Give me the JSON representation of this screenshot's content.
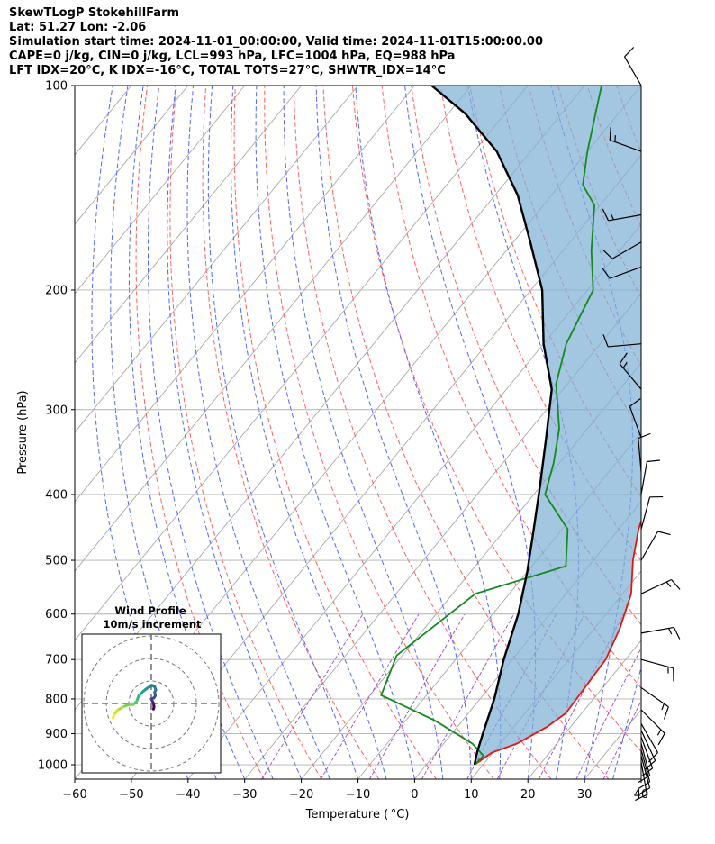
{
  "header": {
    "line1": "SkewTLogP StokehillFarm",
    "line2": "Lat: 51.27   Lon: -2.06",
    "line3": "Simulation start time: 2024-11-01_00:00:00, Valid time: 2024-11-01T15:00:00.00",
    "line4": "CAPE=0 j/kg, CIN=0 j/kg, LCL=993 hPa, LFC=1004 hPa, EQ=988 hPa",
    "line5": "LFT IDX=20°C, K IDX=-16°C, TOTAL TOTS=27°C, SHWTR_IDX=14°C"
  },
  "chart_data": {
    "type": "line",
    "xlabel": "Temperature ( °C)",
    "ylabel": "Pressure (hPa)",
    "xlim": [
      -60,
      40
    ],
    "ylim": [
      1050,
      100
    ],
    "yscale": "log",
    "skew": true,
    "grid": true,
    "xticks": [
      -60,
      -50,
      -40,
      -30,
      -20,
      -10,
      0,
      10,
      20,
      30,
      40
    ],
    "xtick_labels": [
      "−60",
      "−50",
      "−40",
      "−30",
      "−20",
      "−10",
      "0",
      "10",
      "20",
      "30",
      "40"
    ],
    "yticks": [
      1000,
      900,
      800,
      700,
      600,
      500,
      400,
      300,
      200,
      100
    ],
    "ytick_labels": [
      "1000",
      "900",
      "800",
      "700",
      "600",
      "500",
      "400",
      "300",
      "200",
      "100"
    ],
    "series": [
      {
        "color": "#e8140f",
        "x": [
          8.5,
          9.8,
          13,
          15.8,
          17.2,
          17.0,
          16.5,
          14.5,
          11.5,
          7.0,
          3.5,
          0.5,
          -0.8,
          -4.0,
          -6.0,
          -9.0,
          -13.0,
          -18.0,
          -20.0,
          -22.0,
          -27.0,
          -33.0,
          -36.0,
          -46.0,
          -49.0
        ],
        "y": [
          1000,
          960,
          930,
          880,
          840,
          800,
          700,
          630,
          560,
          500,
          450,
          400,
          360,
          320,
          280,
          250,
          210,
          180,
          165,
          155,
          135,
          125,
          115,
          105,
          100
        ]
      },
      {
        "color": "#128a1c",
        "x": [
          8.5,
          8.8,
          5.0,
          -5.0,
          -18.0,
          -21.0,
          -16.0,
          -4.0,
          -9.0,
          -18.0,
          -21.0,
          -25.0,
          -32.0,
          -36.0,
          -39.0,
          -45.0,
          -51.0,
          -56.0,
          -60.0,
          -67.0
        ],
        "y": [
          1000,
          970,
          930,
          860,
          790,
          690,
          560,
          510,
          450,
          400,
          360,
          320,
          275,
          240,
          200,
          175,
          150,
          140,
          125,
          100
        ]
      },
      {
        "color": "#000000",
        "x": [
          8.5,
          7.2,
          5.5,
          2.5,
          -1.5,
          -5.5,
          -10.0,
          -15.0,
          -20.0,
          -26.0,
          -32.0,
          -40.0,
          -48.0,
          -57.0,
          -66.0,
          -76.0,
          -87.0,
          -97.0
        ],
        "y": [
          1000,
          960,
          900,
          800,
          700,
          600,
          520,
          450,
          390,
          330,
          280,
          240,
          200,
          170,
          145,
          125,
          110,
          100
        ]
      }
    ],
    "barbs": [
      {
        "p": 100,
        "speed": 10,
        "dir": 330
      },
      {
        "p": 125,
        "speed": 15,
        "dir": 290
      },
      {
        "p": 155,
        "speed": 15,
        "dir": 260
      },
      {
        "p": 170,
        "speed": 10,
        "dir": 240
      },
      {
        "p": 185,
        "speed": 10,
        "dir": 250
      },
      {
        "p": 240,
        "speed": 10,
        "dir": 265
      },
      {
        "p": 280,
        "speed": 15,
        "dir": 320
      },
      {
        "p": 330,
        "speed": 10,
        "dir": 340
      },
      {
        "p": 370,
        "speed": 10,
        "dir": 355
      },
      {
        "p": 400,
        "speed": 10,
        "dir": 10
      },
      {
        "p": 450,
        "speed": 10,
        "dir": 15
      },
      {
        "p": 500,
        "speed": 10,
        "dir": 30
      },
      {
        "p": 560,
        "speed": 15,
        "dir": 65
      },
      {
        "p": 640,
        "speed": 15,
        "dir": 80
      },
      {
        "p": 700,
        "speed": 15,
        "dir": 105
      },
      {
        "p": 770,
        "speed": 15,
        "dir": 125
      },
      {
        "p": 830,
        "speed": 15,
        "dir": 135
      },
      {
        "p": 870,
        "speed": 10,
        "dir": 150
      },
      {
        "p": 890,
        "speed": 10,
        "dir": 155
      },
      {
        "p": 910,
        "speed": 10,
        "dir": 160
      },
      {
        "p": 930,
        "speed": 10,
        "dir": 165
      },
      {
        "p": 950,
        "speed": 10,
        "dir": 165
      },
      {
        "p": 970,
        "speed": 10,
        "dir": 165
      },
      {
        "p": 990,
        "speed": 10,
        "dir": 170
      }
    ],
    "hodograph": {
      "title": "Wind Profile",
      "subtitle": "10m/s increment",
      "rings_ms": [
        10,
        20,
        30
      ],
      "u": [
        1.0,
        1.2,
        1.0,
        0.5,
        0.0,
        1.2,
        1.8,
        1.5,
        2.0,
        1.5,
        0.5,
        -1.5,
        -3.5,
        -5.0,
        -5.5,
        -6.5,
        -8.0,
        -10.0,
        -12.5,
        -15.0,
        -16.5,
        -17.0
      ],
      "v": [
        -2.5,
        -1.5,
        0.0,
        1.0,
        2.0,
        2.5,
        3.5,
        5.0,
        6.0,
        7.5,
        8.0,
        7.0,
        5.5,
        4.0,
        3.5,
        1.0,
        -0.5,
        -0.5,
        -1.5,
        -3.0,
        -5.0,
        -6.5
      ],
      "colors": [
        "#440154",
        "#481a6c",
        "#472f7d",
        "#414487",
        "#39568c",
        "#31688e",
        "#2a788e",
        "#23888e",
        "#1f988b",
        "#22a884",
        "#35b779",
        "#54c568",
        "#7ad151",
        "#a5db36",
        "#d2e21b",
        "#fde725"
      ]
    }
  }
}
